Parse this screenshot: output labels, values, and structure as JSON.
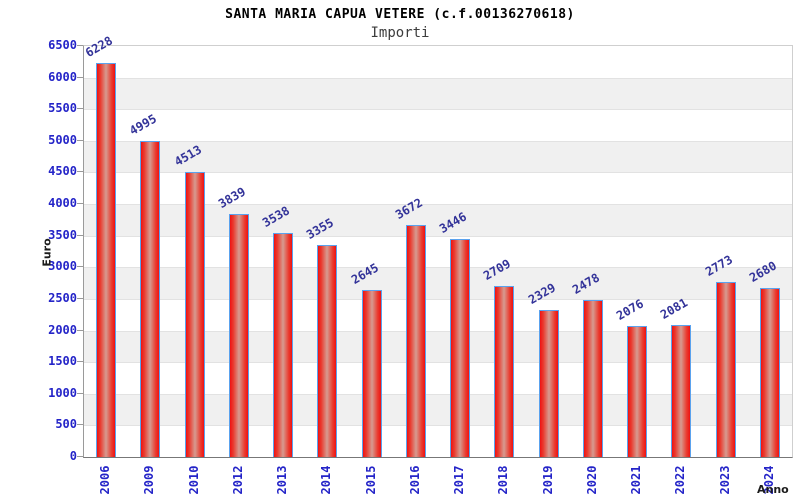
{
  "title": "SANTA MARIA CAPUA VETERE (c.f.00136270618)",
  "subtitle": "Importi",
  "chart_data": {
    "type": "bar",
    "title": "SANTA MARIA CAPUA VETERE (c.f.00136270618)",
    "subtitle": "Importi",
    "categories": [
      "2006",
      "2009",
      "2010",
      "2012",
      "2013",
      "2014",
      "2015",
      "2016",
      "2017",
      "2018",
      "2019",
      "2020",
      "2021",
      "2022",
      "2023",
      "2024"
    ],
    "values": [
      6228,
      4995,
      4513,
      3839,
      3538,
      3355,
      2645,
      3672,
      3446,
      2709,
      2329,
      2478,
      2076,
      2081,
      2773,
      2680
    ],
    "xlabel": "Anno",
    "ylabel": "Euro",
    "ylim": [
      0,
      6500
    ],
    "ytick_step": 500,
    "grid": true,
    "band_shading": "alternating horizontal stripes",
    "colors": {
      "bar_fill_edge": "#ef1212",
      "bar_fill_center": "#d69b90",
      "bar_border": "#5aa2ee",
      "value_label": "#333399",
      "axis_tick_label": "#2424c8",
      "band": "#f0f0f0",
      "gridline": "#e2e2e2"
    }
  }
}
